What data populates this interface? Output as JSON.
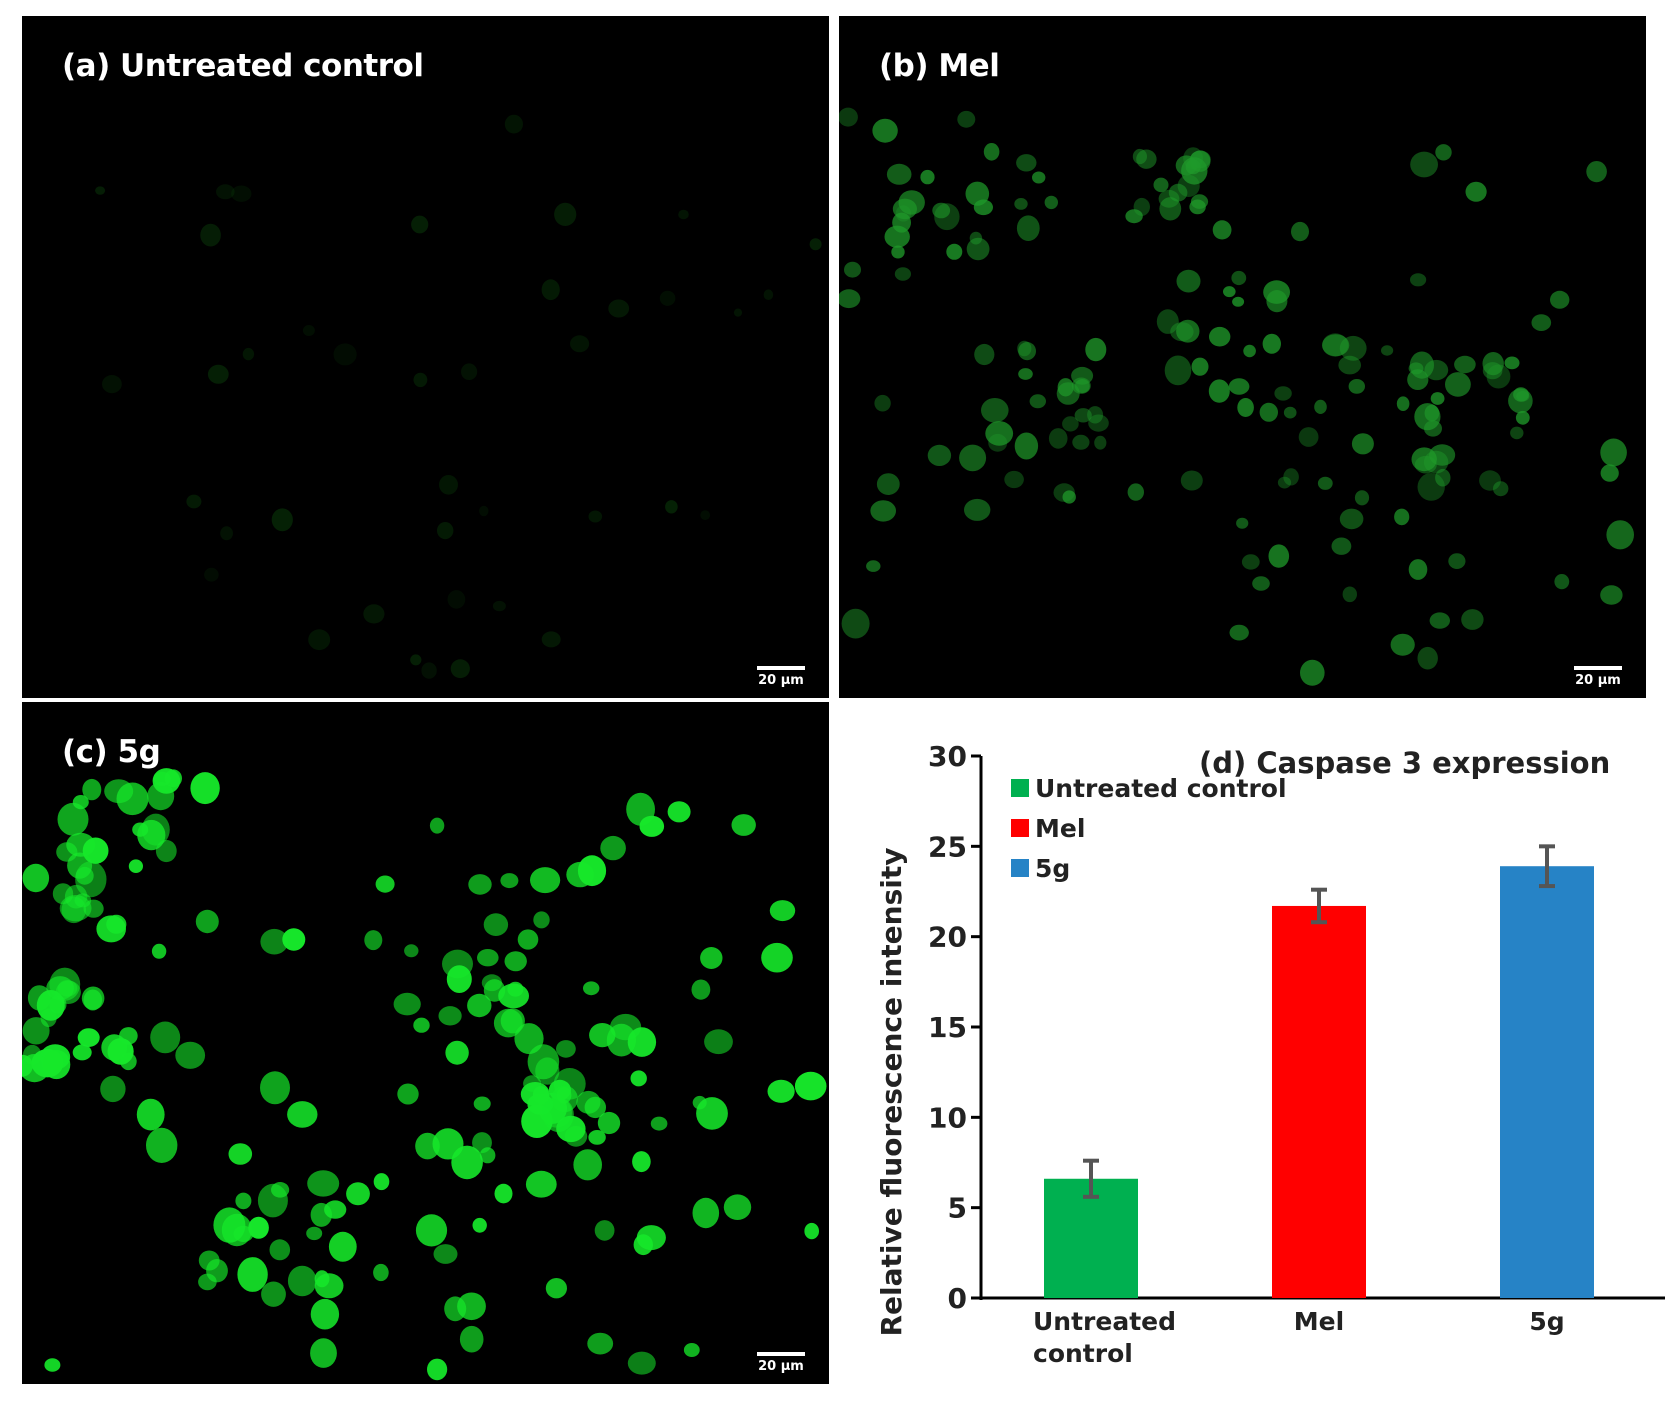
{
  "panels": [
    {
      "label": "(a) Untreated control",
      "scalebar": "20 µm"
    },
    {
      "label": "(b) Mel",
      "scalebar": "20 µm"
    },
    {
      "label": "(c) 5g",
      "scalebar": "20 µm"
    }
  ],
  "chart_data": {
    "type": "bar",
    "title": "(d) Caspase 3 expression",
    "ylabel": "Relative fluorescence intensity",
    "xlabel": "",
    "categories": [
      "Untreated control",
      "Mel",
      "5g"
    ],
    "category_lines": [
      [
        "Untreated",
        "control"
      ],
      [
        "Mel"
      ],
      [
        "5g"
      ]
    ],
    "values": [
      6.6,
      21.7,
      23.9
    ],
    "errors": [
      1.0,
      0.9,
      1.1
    ],
    "colors": [
      "#00b050",
      "#ff0000",
      "#2683c6"
    ],
    "ylim": [
      0,
      30
    ],
    "yticks": [
      0,
      5,
      10,
      15,
      20,
      25,
      30
    ],
    "legend": {
      "position": "top-left",
      "entries": [
        "Untreated control",
        "Mel",
        "5g"
      ]
    },
    "grid": false
  }
}
